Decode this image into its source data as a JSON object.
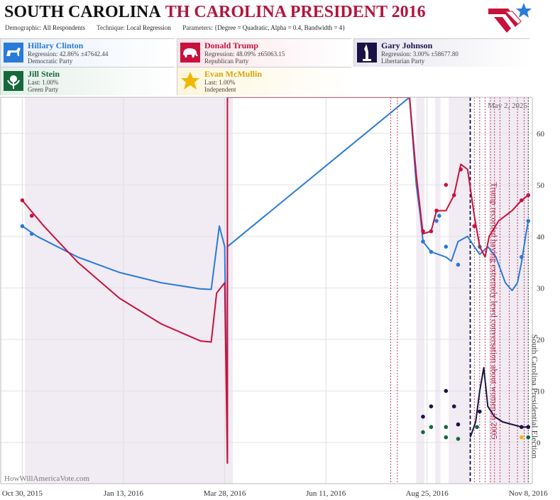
{
  "header": {
    "title_main": "SOUTH CAROLINA",
    "title_sub": "TH CAROLINA PRESIDENT 2016",
    "demographic_label": "Demographic:",
    "demographic_value": "All Respondents",
    "technique_label": "Technique:",
    "technique_value": "Local Regression",
    "parameters_label": "Parameters:",
    "parameters_value": "{Degree = Quadratic, Alpha = 0.4, Bandwidth = 4}"
  },
  "candidates": [
    {
      "name": "Hillary Clinton",
      "line1": "Regression: 42.86% ±47642.44",
      "line2": "Democratic Party",
      "color": "#2a7ad8",
      "icon": "donkey-icon"
    },
    {
      "name": "Donald Trump",
      "line1": "Regression: 48.09% ±65063.15",
      "line2": "Republican Party",
      "color": "#c8123c",
      "icon": "elephant-icon"
    },
    {
      "name": "Gary Johnson",
      "line1": "Regression: 3.00% ±58677.80",
      "line2": "Libertarian Party",
      "color": "#1b1247",
      "icon": "liberty-icon"
    },
    {
      "name": "Jill Stein",
      "line1": "Last: 1.00%",
      "line2": "Green Party",
      "color": "#16683a",
      "icon": "flower-icon"
    },
    {
      "name": "Evan McMullin",
      "line1": "Last: 1.00%",
      "line2": "Independent",
      "color": "#f0b800",
      "icon": "star-icon"
    }
  ],
  "chart_data": {
    "type": "line",
    "x_axis": {
      "type": "date",
      "min": "2015-10-14",
      "max": "2016-11-11",
      "tick_labels": [
        "Oct 30, 2015",
        "Jan 13, 2016",
        "Mar 28, 2016",
        "Jun 11, 2016",
        "Aug 25, 2016",
        "Nov 8, 2016"
      ],
      "tick_dates": [
        "2015-10-30",
        "2016-01-13",
        "2016-03-28",
        "2016-06-11",
        "2016-08-25",
        "2016-11-08"
      ]
    },
    "y_axis": {
      "min": -8,
      "max": 67,
      "ticks": [
        0,
        10,
        20,
        30,
        40,
        50,
        60
      ]
    },
    "grid": true,
    "date_label": "May 2, 2025",
    "watermark": "HowWillAmericaVote.com",
    "annotations": [
      {
        "date": "2016-10-07",
        "text": "Trump recorded having extremely lewd conversation about women in 2005"
      },
      {
        "date": "2016-11-08",
        "text": "South Carolina Presidential Election"
      }
    ],
    "shaded_ranges": [
      [
        "2015-11-01",
        "2016-04-03"
      ],
      [
        "2016-08-17",
        "2016-08-23"
      ],
      [
        "2016-08-31",
        "2016-09-04"
      ],
      [
        "2016-09-10",
        "2016-09-26"
      ],
      [
        "2016-10-10",
        "2016-11-08"
      ]
    ],
    "poll_markers": [
      "2016-07-29",
      "2016-08-03",
      "2016-09-29",
      "2016-10-03",
      "2016-10-07",
      "2016-10-11",
      "2016-10-14",
      "2016-10-18",
      "2016-10-25",
      "2016-10-31",
      "2016-11-05",
      "2016-11-08"
    ],
    "series": [
      {
        "name": "Hillary Clinton",
        "color": "#2a7ad8",
        "line": [
          [
            "2015-10-30",
            42
          ],
          [
            "2015-11-10",
            40
          ],
          [
            "2015-12-10",
            36
          ],
          [
            "2016-01-10",
            33
          ],
          [
            "2016-02-10",
            31
          ],
          [
            "2016-03-10",
            29.8
          ],
          [
            "2016-03-18",
            29.7
          ],
          [
            "2016-03-24",
            42
          ],
          [
            "2016-03-28",
            38
          ],
          [
            "2016-03-30",
            -4
          ],
          [
            "2016-03-30",
            38
          ],
          [
            "2016-08-12",
            67
          ],
          [
            "2016-08-17",
            50
          ],
          [
            "2016-08-20",
            44
          ],
          [
            "2016-08-22",
            39
          ],
          [
            "2016-08-28",
            37
          ],
          [
            "2016-09-08",
            36
          ],
          [
            "2016-09-12",
            35.2
          ],
          [
            "2016-09-17",
            39
          ],
          [
            "2016-09-24",
            40
          ],
          [
            "2016-09-29",
            38
          ],
          [
            "2016-10-03",
            36.5
          ],
          [
            "2016-10-09",
            38
          ],
          [
            "2016-10-15",
            36
          ],
          [
            "2016-10-22",
            31
          ],
          [
            "2016-10-27",
            29.5
          ],
          [
            "2016-10-31",
            31
          ],
          [
            "2016-11-03",
            35
          ],
          [
            "2016-11-06",
            40
          ],
          [
            "2016-11-08",
            43
          ]
        ],
        "points": [
          [
            "2015-10-30",
            42
          ],
          [
            "2015-11-06",
            40.5
          ],
          [
            "2016-08-22",
            39
          ],
          [
            "2016-08-28",
            37
          ],
          [
            "2016-09-01",
            43
          ],
          [
            "2016-09-03",
            44
          ],
          [
            "2016-09-08",
            38
          ],
          [
            "2016-09-17",
            34.5
          ],
          [
            "2016-10-03",
            38
          ],
          [
            "2016-11-03",
            36
          ],
          [
            "2016-11-08",
            43
          ]
        ]
      },
      {
        "name": "Donald Trump",
        "color": "#c8123c",
        "line": [
          [
            "2015-10-30",
            47
          ],
          [
            "2015-11-15",
            42
          ],
          [
            "2015-12-10",
            35
          ],
          [
            "2016-01-10",
            28
          ],
          [
            "2016-02-10",
            23
          ],
          [
            "2016-03-10",
            19.7
          ],
          [
            "2016-03-18",
            19.5
          ],
          [
            "2016-03-22",
            29
          ],
          [
            "2016-03-28",
            31
          ],
          [
            "2016-03-30",
            -4
          ],
          [
            "2016-03-30",
            67
          ],
          [
            "2016-08-12",
            67
          ],
          [
            "2016-08-17",
            52
          ],
          [
            "2016-08-20",
            45
          ],
          [
            "2016-08-22",
            40.5
          ],
          [
            "2016-08-28",
            41
          ],
          [
            "2016-09-01",
            45
          ],
          [
            "2016-09-08",
            45
          ],
          [
            "2016-09-14",
            48
          ],
          [
            "2016-09-19",
            54
          ],
          [
            "2016-09-24",
            53
          ],
          [
            "2016-09-29",
            44
          ],
          [
            "2016-10-03",
            38
          ],
          [
            "2016-10-07",
            36
          ],
          [
            "2016-10-10",
            40
          ],
          [
            "2016-10-17",
            43
          ],
          [
            "2016-10-27",
            45
          ],
          [
            "2016-11-03",
            47
          ],
          [
            "2016-11-08",
            48
          ]
        ],
        "points": [
          [
            "2015-10-30",
            47
          ],
          [
            "2015-11-06",
            44
          ],
          [
            "2016-08-22",
            41
          ],
          [
            "2016-08-28",
            41
          ],
          [
            "2016-09-01",
            45
          ],
          [
            "2016-09-08",
            50
          ],
          [
            "2016-09-14",
            48
          ],
          [
            "2016-09-19",
            53
          ],
          [
            "2016-09-29",
            42
          ],
          [
            "2016-11-03",
            47
          ],
          [
            "2016-11-08",
            48
          ]
        ]
      },
      {
        "name": "Gary Johnson",
        "color": "#1b1247",
        "line": [
          [
            "2016-09-26",
            1
          ],
          [
            "2016-09-30",
            4
          ],
          [
            "2016-10-03",
            10
          ],
          [
            "2016-10-06",
            14.5
          ],
          [
            "2016-10-09",
            7
          ],
          [
            "2016-10-14",
            5
          ],
          [
            "2016-10-20",
            4
          ],
          [
            "2016-10-27",
            3.5
          ],
          [
            "2016-11-03",
            3
          ],
          [
            "2016-11-08",
            3
          ]
        ],
        "points": [
          [
            "2016-08-22",
            5
          ],
          [
            "2016-08-28",
            7
          ],
          [
            "2016-09-08",
            10
          ],
          [
            "2016-09-14",
            7
          ],
          [
            "2016-09-17",
            3.5
          ],
          [
            "2016-10-03",
            6
          ],
          [
            "2016-11-03",
            3
          ],
          [
            "2016-11-08",
            3
          ]
        ]
      },
      {
        "name": "Jill Stein",
        "color": "#16683a",
        "line": [],
        "points": [
          [
            "2016-08-22",
            2
          ],
          [
            "2016-08-28",
            3
          ],
          [
            "2016-09-08",
            3
          ],
          [
            "2016-09-08",
            1
          ],
          [
            "2016-09-17",
            0.7
          ],
          [
            "2016-10-01",
            3
          ],
          [
            "2016-11-08",
            1
          ]
        ]
      },
      {
        "name": "Evan McMullin",
        "color": "#f0b800",
        "line": [],
        "points": [
          [
            "2016-11-03",
            1
          ]
        ]
      }
    ]
  }
}
